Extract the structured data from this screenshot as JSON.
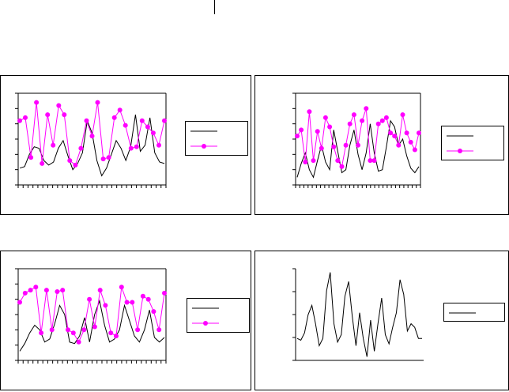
{
  "colors": {
    "series_a": "#000000",
    "series_b": "#ff00ff",
    "frame": "#000000",
    "background": "#ffffff"
  },
  "chart_data": [
    {
      "type": "line",
      "title": "",
      "xlabel": "",
      "ylabel": "",
      "ylim": [
        0,
        6
      ],
      "grid": false,
      "legend": "right",
      "x_ticks": 31,
      "series": [
        {
          "values": [
            1.1,
            1.2,
            2.0,
            2.5,
            2.4,
            1.6,
            1.3,
            1.5,
            2.4,
            2.9,
            1.9,
            1.0,
            1.4,
            2.1,
            4.2,
            3.4,
            1.6,
            0.6,
            1.1,
            2.0,
            2.9,
            2.4,
            1.6,
            2.5,
            4.6,
            2.2,
            2.6,
            4.4,
            2.1,
            1.5,
            1.4
          ]
        },
        {
          "marker": "circle",
          "values": [
            4.2,
            4.4,
            1.8,
            5.4,
            1.4,
            4.6,
            2.6,
            5.2,
            4.6,
            1.6,
            1.3,
            2.4,
            4.2,
            3.2,
            5.4,
            1.7,
            1.8,
            4.4,
            4.9,
            3.9,
            2.4,
            2.5,
            4.2,
            3.8,
            3.4,
            2.6,
            4.2
          ]
        }
      ]
    },
    {
      "type": "line",
      "title": "",
      "xlabel": "",
      "ylabel": "",
      "ylim": [
        0,
        6
      ],
      "grid": false,
      "legend": "right",
      "x_ticks": 31,
      "series": [
        {
          "values": [
            0.5,
            1.4,
            2.1,
            1.0,
            0.5,
            1.6,
            2.6,
            1.5,
            1.0,
            3.6,
            2.2,
            0.8,
            1.0,
            2.6,
            3.6,
            2.0,
            1.0,
            2.1,
            4.0,
            2.1,
            0.9,
            1.0,
            2.5,
            4.2,
            3.8,
            2.6,
            3.0,
            1.9,
            1.1,
            0.8,
            1.2
          ]
        },
        {
          "marker": "circle",
          "values": [
            3.2,
            3.6,
            1.5,
            4.8,
            1.6,
            3.5,
            2.4,
            4.4,
            3.8,
            2.5,
            1.6,
            1.2,
            2.6,
            4.0,
            4.6,
            2.6,
            4.2,
            5.0,
            1.6,
            1.6,
            4.0,
            4.2,
            4.4,
            3.4,
            3.2,
            2.6,
            4.6,
            3.4,
            2.8,
            2.3,
            3.4
          ]
        }
      ]
    },
    {
      "type": "line",
      "title": "",
      "xlabel": "",
      "ylabel": "",
      "ylim": [
        0,
        6
      ],
      "grid": false,
      "legend": "right",
      "x_ticks": 31,
      "series": [
        {
          "values": [
            0.6,
            1.1,
            1.8,
            2.3,
            2.0,
            1.2,
            1.4,
            2.4,
            3.6,
            3.0,
            1.2,
            1.1,
            1.6,
            2.8,
            1.2,
            3.0,
            3.9,
            2.3,
            1.2,
            1.4,
            2.0,
            3.6,
            2.6,
            1.6,
            1.2,
            2.0,
            3.3,
            1.5,
            1.2,
            1.5
          ]
        },
        {
          "marker": "circle",
          "values": [
            3.8,
            4.4,
            4.6,
            4.8,
            1.8,
            4.6,
            2.0,
            4.5,
            4.6,
            2.0,
            1.8,
            1.2,
            2.0,
            4.0,
            2.2,
            4.6,
            3.6,
            1.8,
            1.6,
            4.8,
            3.8,
            3.8,
            2.0,
            4.2,
            4.0,
            3.2,
            2.0,
            4.4
          ]
        }
      ]
    },
    {
      "type": "line",
      "title": "",
      "xlabel": "",
      "ylabel": "",
      "ylim": [
        0,
        5
      ],
      "grid": false,
      "legend": "right",
      "x_ticks": 0,
      "series": [
        {
          "values": [
            1.2,
            1.1,
            1.5,
            2.5,
            3.0,
            2.0,
            0.8,
            1.2,
            3.8,
            4.8,
            2.0,
            1.0,
            1.4,
            3.5,
            4.3,
            2.4,
            0.8,
            2.6,
            1.2,
            0.2,
            2.2,
            0.5,
            2.0,
            3.4,
            1.4,
            0.9,
            1.8,
            2.6,
            4.4,
            3.6,
            1.6,
            2.0,
            1.8,
            1.2,
            1.2
          ]
        }
      ]
    }
  ]
}
